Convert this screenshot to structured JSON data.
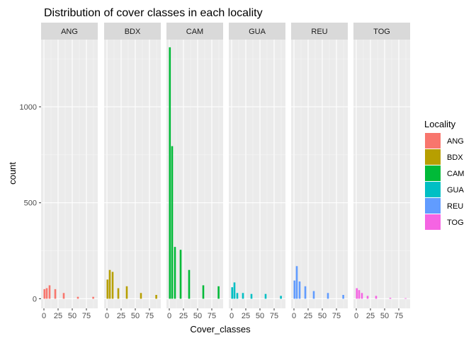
{
  "chart_data": {
    "type": "bar",
    "title": "Distribution of cover classes in each locality",
    "xlabel": "Cover_classes",
    "ylabel": "count",
    "xlim": [
      -5,
      95
    ],
    "ylim": [
      -50,
      1350
    ],
    "xticks": [
      0,
      25,
      50,
      75
    ],
    "xtick_labels": [
      "0",
      "25",
      "50",
      "75"
    ],
    "yticks": [
      0,
      500,
      1000
    ],
    "ytick_labels": [
      "0",
      "500",
      "1000"
    ],
    "grid": true,
    "facets": [
      "ANG",
      "BDX",
      "CAM",
      "GUA",
      "REU",
      "TOG"
    ],
    "legend": {
      "title": "Locality",
      "placement": "right",
      "entries": [
        "ANG",
        "BDX",
        "CAM",
        "GUA",
        "REU",
        "TOG"
      ]
    },
    "colors": {
      "ANG": "#F8766D",
      "BDX": "#B79F00",
      "CAM": "#00BA38",
      "GUA": "#00BFC4",
      "REU": "#619CFF",
      "TOG": "#F564E3"
    },
    "series": [
      {
        "name": "ANG",
        "x": [
          1,
          5,
          10,
          20,
          35,
          60,
          87
        ],
        "values": [
          50,
          55,
          70,
          50,
          30,
          10,
          10
        ]
      },
      {
        "name": "BDX",
        "x": [
          1,
          5,
          10,
          20,
          35,
          60,
          87
        ],
        "values": [
          100,
          150,
          140,
          55,
          65,
          30,
          20
        ]
      },
      {
        "name": "CAM",
        "x": [
          1,
          5,
          10,
          20,
          35,
          60,
          87
        ],
        "values": [
          1310,
          795,
          270,
          255,
          150,
          70,
          65
        ]
      },
      {
        "name": "GUA",
        "x": [
          1,
          5,
          10,
          20,
          35,
          60,
          87
        ],
        "values": [
          60,
          85,
          30,
          30,
          25,
          25,
          15
        ]
      },
      {
        "name": "REU",
        "x": [
          1,
          5,
          10,
          20,
          35,
          60,
          87
        ],
        "values": [
          95,
          170,
          90,
          65,
          40,
          30,
          20
        ]
      },
      {
        "name": "TOG",
        "x": [
          1,
          5,
          10,
          20,
          35,
          60,
          87
        ],
        "values": [
          55,
          45,
          30,
          15,
          15,
          5,
          3
        ]
      }
    ]
  }
}
